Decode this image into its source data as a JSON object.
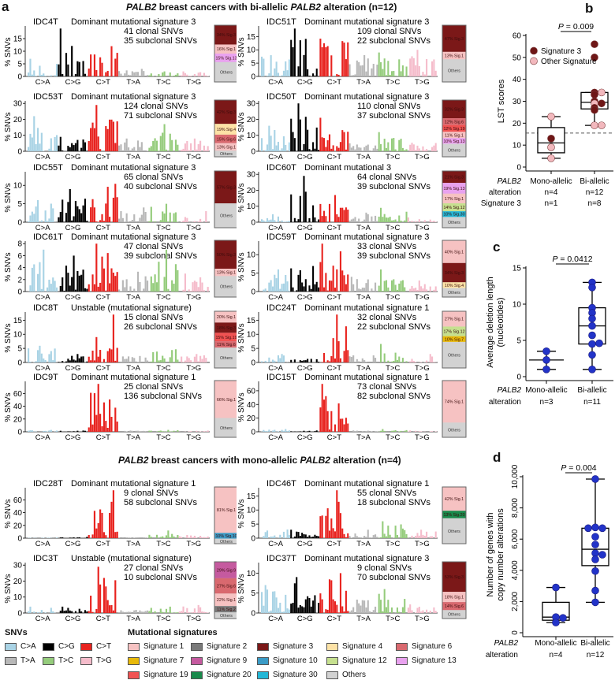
{
  "panel_labels": {
    "a": "a",
    "b": "b",
    "c": "c",
    "d": "d"
  },
  "section_titles": {
    "biallelic": {
      "gene": "PALB2",
      "part1": " breast cancers with bi-allelic ",
      "gene2": "PALB2",
      "part2": " alteration (n=12)"
    },
    "monoallelic": {
      "gene": "PALB2",
      "part1": " breast cancers with mono-allelic ",
      "gene2": "PALB2",
      "part2": " alteration (n=4)"
    }
  },
  "colors": {
    "snv": {
      "C>A": "#a9d3e5",
      "C>G": "#000000",
      "C>T": "#e8231f",
      "T>A": "#b8b8b8",
      "T>C": "#95cc7c",
      "T>G": "#f5bccb"
    },
    "signatures": {
      "Sig.1": "#f6c2c2",
      "Sig.2": "#7a7a7a",
      "Sig.3": "#7b1818",
      "Sig.4": "#fde2a6",
      "Sig.6": "#d9696f",
      "Sig.7": "#e8b90a",
      "Sig.9": "#c55a9f",
      "Sig.10": "#3b9bc6",
      "Sig.12": "#c6e08f",
      "Sig.13": "#e9a2ef",
      "Sig.19": "#f05252",
      "Sig.20": "#198a4b",
      "Sig.30": "#22b7d6",
      "Others": "#d2d2d2"
    },
    "sig3_point": "#6e1616",
    "other_point": "#f2b8bd",
    "blue_point": "#2233c8"
  },
  "chart_data": [
    {
      "type": "bar",
      "panel": "a",
      "description_axis": {
        "ylabel": "% SNVs",
        "categories": [
          "C>A",
          "C>G",
          "C>T",
          "T>A",
          "T>C",
          "T>G"
        ]
      },
      "samples": [
        {
          "group": "biallelic",
          "id": "IDC4T",
          "dominant": "Dominant mutational signature 3",
          "clonal": "41 clonal SNVs",
          "subclonal": "35 subclonal SNVs",
          "yticks": [
            0,
            5,
            10,
            15
          ],
          "category_peaks": [
            7,
            19,
            12,
            3,
            2,
            2
          ],
          "signatures": [
            {
              "name": "Sig.3",
              "pct": 34
            },
            {
              "name": "Sig.1",
              "pct": 16
            },
            {
              "name": "Sig.13",
              "pct": 15
            }
          ]
        },
        {
          "group": "biallelic",
          "id": "IDC51T",
          "dominant": "Dominant mutational signature 3",
          "clonal": "109 clonal SNVs",
          "subclonal": "22 subclonal SNVs",
          "yticks": [
            0,
            5,
            10,
            15
          ],
          "category_peaks": [
            11,
            18,
            18,
            8,
            9,
            10
          ],
          "signatures": [
            {
              "name": "Sig.3",
              "pct": 47
            },
            {
              "name": "Sig.1",
              "pct": 13
            }
          ]
        },
        {
          "group": "biallelic",
          "id": "IDC53T",
          "dominant": "Dominant mutational signature 3",
          "clonal": "124 clonal SNVs",
          "subclonal": "71 subclonal SNVs",
          "yticks": [
            0,
            10,
            20,
            30
          ],
          "category_peaks": [
            22,
            18,
            29,
            8,
            17,
            8
          ],
          "signatures": [
            {
              "name": "Sig.3",
              "pct": 42
            },
            {
              "name": "Sig.4",
              "pct": 19
            },
            {
              "name": "Sig.6",
              "pct": 15
            },
            {
              "name": "Sig.1",
              "pct": 13
            }
          ]
        },
        {
          "group": "biallelic",
          "id": "IDC50T",
          "dominant": "Dominant mutational signature 3",
          "clonal": "110 clonal SNVs",
          "subclonal": "37 subclonal SNVs",
          "yticks": [
            0,
            10,
            20,
            30
          ],
          "category_peaks": [
            16,
            30,
            21,
            5,
            12,
            8
          ],
          "signatures": [
            {
              "name": "Sig.3",
              "pct": 32
            },
            {
              "name": "Sig.6",
              "pct": 12
            },
            {
              "name": "Sig.19",
              "pct": 12
            },
            {
              "name": "Sig.1",
              "pct": 11
            },
            {
              "name": "Sig.13",
              "pct": 10
            }
          ]
        },
        {
          "group": "biallelic",
          "id": "IDC55T",
          "dominant": "Dominant mutational signature 3",
          "clonal": "65 clonal SNVs",
          "subclonal": "40 subclonal SNVs",
          "yticks": [
            0,
            5,
            10
          ],
          "category_peaks": [
            6,
            9,
            13,
            4,
            5,
            3
          ],
          "signatures": [
            {
              "name": "Sig.3",
              "pct": 57
            }
          ]
        },
        {
          "group": "biallelic",
          "id": "IDC60T",
          "dominant": "Dominant mutational 3",
          "clonal": "64 clonal SNVs",
          "subclonal": "39 subclonal SNVs",
          "yticks": [
            0,
            10,
            20,
            30
          ],
          "category_peaks": [
            5,
            29,
            17,
            6,
            9,
            3
          ],
          "signatures": [
            {
              "name": "Sig.3",
              "pct": 21
            },
            {
              "name": "Sig.13",
              "pct": 19
            },
            {
              "name": "Sig.1",
              "pct": 17
            },
            {
              "name": "Sig.12",
              "pct": 14
            },
            {
              "name": "Sig.30",
              "pct": 10
            }
          ]
        },
        {
          "group": "biallelic",
          "id": "IDC61T",
          "dominant": "Dominant mutational signature 3",
          "clonal": "47 clonal SNVs",
          "subclonal": "39 subclonal SNVs",
          "yticks": [
            0,
            2,
            4,
            6,
            8
          ],
          "category_peaks": [
            7,
            6,
            8,
            4,
            7,
            3
          ],
          "signatures": [
            {
              "name": "Sig.3",
              "pct": 50
            },
            {
              "name": "Sig.1",
              "pct": 13
            }
          ]
        },
        {
          "group": "biallelic",
          "id": "IDC59T",
          "dominant": "Dominant mutational signature 3",
          "clonal": "33 clonal SNVs",
          "subclonal": "39 subclonal SNVs",
          "yticks": [
            0,
            5,
            10
          ],
          "category_peaks": [
            6,
            12,
            13,
            4,
            6,
            3
          ],
          "signatures": [
            {
              "name": "Sig.1",
              "pct": 40
            },
            {
              "name": "Sig.3",
              "pct": 34
            },
            {
              "name": "Sig.4",
              "pct": 10
            }
          ]
        },
        {
          "group": "biallelic",
          "id": "IDC8T",
          "dominant": "Unstable (mutational signature)",
          "clonal": "15 clonal SNVs",
          "subclonal": "26 subclonal SNVs",
          "yticks": [
            0,
            5,
            10,
            15
          ],
          "category_peaks": [
            7,
            3,
            17,
            3,
            6,
            3
          ],
          "signatures": [
            {
              "name": "Sig.1",
              "pct": 20
            },
            {
              "name": "Sig.3",
              "pct": 18
            },
            {
              "name": "Sig.19",
              "pct": 15
            },
            {
              "name": "Sig.6",
              "pct": 11
            }
          ]
        },
        {
          "group": "biallelic",
          "id": "IDC24T",
          "dominant": "Dominant mutational signature 1",
          "clonal": "32 clonal SNVs",
          "subclonal": "22 subclonal SNVs",
          "yticks": [
            0,
            5,
            10,
            15
          ],
          "category_peaks": [
            3,
            2,
            17,
            3,
            8,
            3
          ],
          "signatures": [
            {
              "name": "Sig.1",
              "pct": 27
            },
            {
              "name": "Sig.12",
              "pct": 17
            },
            {
              "name": "Sig.7",
              "pct": 10
            }
          ]
        },
        {
          "group": "biallelic",
          "id": "IDC9T",
          "dominant": "Dominant mutational signature 1",
          "clonal": "25 clonal SNVs",
          "subclonal": "136 subclonal SNVs",
          "yticks": [
            0,
            20,
            40,
            60
          ],
          "category_peaks": [
            3,
            2,
            75,
            2,
            3,
            2
          ],
          "signatures": [
            {
              "name": "Sig.1",
              "pct": 66
            }
          ]
        },
        {
          "group": "biallelic",
          "id": "IDC15T",
          "dominant": "Dominant mutational signature 1",
          "clonal": "73 clonal SNVs",
          "subclonal": "82 subclonal SNVs",
          "yticks": [
            0,
            20,
            40,
            60
          ],
          "category_peaks": [
            4,
            2,
            70,
            2,
            4,
            2
          ],
          "signatures": [
            {
              "name": "Sig.1",
              "pct": 74
            }
          ]
        },
        {
          "group": "monoallelic",
          "id": "IDC28T",
          "dominant": "Dominant mutational signature 1",
          "clonal": "9 clonal SNVs",
          "subclonal": "58 subclonal SNVs",
          "yticks": [
            0,
            20,
            40,
            60
          ],
          "category_peaks": [
            1,
            2,
            75,
            1,
            12,
            5
          ],
          "signatures": [
            {
              "name": "Sig.1",
              "pct": 81
            },
            {
              "name": "Sig.10",
              "pct": 10
            }
          ]
        },
        {
          "group": "monoallelic",
          "id": "IDC46T",
          "dominant": "Dominant mutational signature 1",
          "clonal": "55 clonal SNVs",
          "subclonal": "18 subclonal SNVs",
          "yticks": [
            0,
            5,
            10,
            15
          ],
          "category_peaks": [
            4,
            3,
            17,
            3,
            6,
            3
          ],
          "signatures": [
            {
              "name": "Sig.1",
              "pct": 42
            },
            {
              "name": "Sig.20",
              "pct": 13
            }
          ]
        },
        {
          "group": "monoallelic",
          "id": "IDC3T",
          "dominant": "Unstable (mutational signature)",
          "clonal": "27 clonal SNVs",
          "subclonal": "10 subclonal SNVs",
          "yticks": [
            0,
            10,
            20,
            30
          ],
          "category_peaks": [
            4,
            4,
            29,
            3,
            4,
            5
          ],
          "signatures": [
            {
              "name": "Sig.9",
              "pct": 29
            },
            {
              "name": "Sig.6",
              "pct": 27
            },
            {
              "name": "Sig.1",
              "pct": 22
            },
            {
              "name": "Sig.2",
              "pct": 11
            }
          ]
        },
        {
          "group": "monoallelic",
          "id": "IDC37T",
          "dominant": "Dominant mutational signature 3",
          "clonal": "9 clonal SNVs",
          "subclonal": "70 subclonal SNVs",
          "yticks": [
            0,
            5,
            10
          ],
          "category_peaks": [
            7,
            9,
            12,
            4,
            6,
            3
          ],
          "signatures": [
            {
              "name": "Sig.3",
              "pct": 53
            },
            {
              "name": "Sig.1",
              "pct": 18
            },
            {
              "name": "Sig.6",
              "pct": 14
            }
          ]
        }
      ],
      "others_label": "Others"
    },
    {
      "type": "scatter",
      "panel": "b",
      "ylabel": "LST scores",
      "ylim": [
        0,
        60
      ],
      "yticks": [
        0,
        10,
        20,
        30,
        40,
        50,
        60
      ],
      "threshold": 15.5,
      "pvalue": "0.009",
      "legend": [
        {
          "label": "Signature 3",
          "kind": "sig3"
        },
        {
          "label": "Other Signature",
          "kind": "other"
        }
      ],
      "legend_position": "top-left",
      "row_labels": {
        "gene": "PALB2",
        "alteration": "alteration",
        "signature": "Signature 3"
      },
      "groups": [
        {
          "label": "Mono-allelic",
          "n": "n=4",
          "sig3n": "n=1",
          "box": {
            "min": 4,
            "q1": 6.5,
            "median": 11,
            "q3": 18,
            "max": 23
          },
          "points": [
            {
              "v": 23,
              "k": "other"
            },
            {
              "v": 13,
              "k": "sig3"
            },
            {
              "v": 9,
              "k": "other"
            },
            {
              "v": 4,
              "k": "other"
            }
          ]
        },
        {
          "label": "Bi-allelic",
          "n": "n=12",
          "sig3n": "n=8",
          "box": {
            "min": 19,
            "q1": 26.5,
            "median": 29.5,
            "q3": 34,
            "max": 34
          },
          "points": [
            {
              "v": 56,
              "k": "sig3"
            },
            {
              "v": 50,
              "k": "sig3"
            },
            {
              "v": 34,
              "k": "sig3"
            },
            {
              "v": 34,
              "k": "other"
            },
            {
              "v": 33,
              "k": "sig3"
            },
            {
              "v": 30,
              "k": "sig3"
            },
            {
              "v": 29,
              "k": "other"
            },
            {
              "v": 29,
              "k": "sig3"
            },
            {
              "v": 27,
              "k": "sig3"
            },
            {
              "v": 26,
              "k": "sig3"
            },
            {
              "v": 19,
              "k": "other"
            },
            {
              "v": 19,
              "k": "other"
            }
          ]
        }
      ]
    },
    {
      "type": "scatter",
      "panel": "c",
      "ylabel": "Average deletion length",
      "ylabel2": "(nucleotides)",
      "ylim": [
        0,
        15
      ],
      "yticks": [
        0,
        5,
        10,
        15
      ],
      "pvalue": "0.0412",
      "row_labels": {
        "gene": "PALB2",
        "alteration": "alteration"
      },
      "groups": [
        {
          "label": "Mono-allelic",
          "n": "n=3",
          "box": {
            "min": 1,
            "q1": 2.3,
            "median": 2.3,
            "q3": 2.3,
            "max": 3.5
          },
          "points": [
            3.5,
            2.3,
            1
          ]
        },
        {
          "label": "Bi-allelic",
          "n": "n=11",
          "box": {
            "min": 1,
            "q1": 4.5,
            "median": 7,
            "q3": 9.5,
            "max": 13
          },
          "points": [
            13,
            12.3,
            9.5,
            8.8,
            8,
            7,
            5.7,
            4.5,
            4.6,
            3,
            1
          ]
        }
      ]
    },
    {
      "type": "scatter",
      "panel": "d",
      "ylabel": "Number of genes with",
      "ylabel2": "copy number alterations",
      "ylim": [
        0,
        10000
      ],
      "yticks": [
        0,
        2000,
        4000,
        6000,
        8000,
        10000
      ],
      "yticklabels": [
        "0",
        "2,000",
        "4,000",
        "6,000",
        "8,000",
        "10,000"
      ],
      "pvalue": "0.004",
      "row_labels": {
        "gene": "PALB2",
        "alteration": "alteration"
      },
      "groups": [
        {
          "label": "Mono-allelic",
          "n": "n=4",
          "box": {
            "min": 650,
            "q1": 800,
            "median": 1000,
            "q3": 1950,
            "max": 2900
          },
          "points": [
            2900,
            1000,
            950,
            650
          ]
        },
        {
          "label": "Bi-allelic",
          "n": "n=12",
          "box": {
            "min": 1950,
            "q1": 4300,
            "median": 5350,
            "q3": 6700,
            "max": 9850
          },
          "points": [
            9850,
            6750,
            6700,
            6700,
            6150,
            5650,
            5100,
            5000,
            4700,
            3950,
            2700,
            1950
          ]
        }
      ]
    }
  ],
  "legend": {
    "snv_title": "SNVs",
    "snv_items": [
      "C>A",
      "C>G",
      "C>T",
      "T>A",
      "T>C",
      "T>G"
    ],
    "sig_title": "Mutational signatures",
    "sig_items": [
      {
        "label": "Signature 1",
        "key": "Sig.1"
      },
      {
        "label": "Signature 2",
        "key": "Sig.2"
      },
      {
        "label": "Signature 3",
        "key": "Sig.3"
      },
      {
        "label": "Signature 4",
        "key": "Sig.4"
      },
      {
        "label": "Signature 6",
        "key": "Sig.6"
      },
      {
        "label": "Signature 7",
        "key": "Sig.7"
      },
      {
        "label": "Signature 9",
        "key": "Sig.9"
      },
      {
        "label": "Signature 10",
        "key": "Sig.10"
      },
      {
        "label": "Signature 12",
        "key": "Sig.12"
      },
      {
        "label": "Signature 13",
        "key": "Sig.13"
      },
      {
        "label": "Signature 19",
        "key": "Sig.19"
      },
      {
        "label": "Signature 20",
        "key": "Sig.20"
      },
      {
        "label": "Signature 30",
        "key": "Sig.30"
      },
      {
        "label": "Others",
        "key": "Others"
      }
    ]
  }
}
